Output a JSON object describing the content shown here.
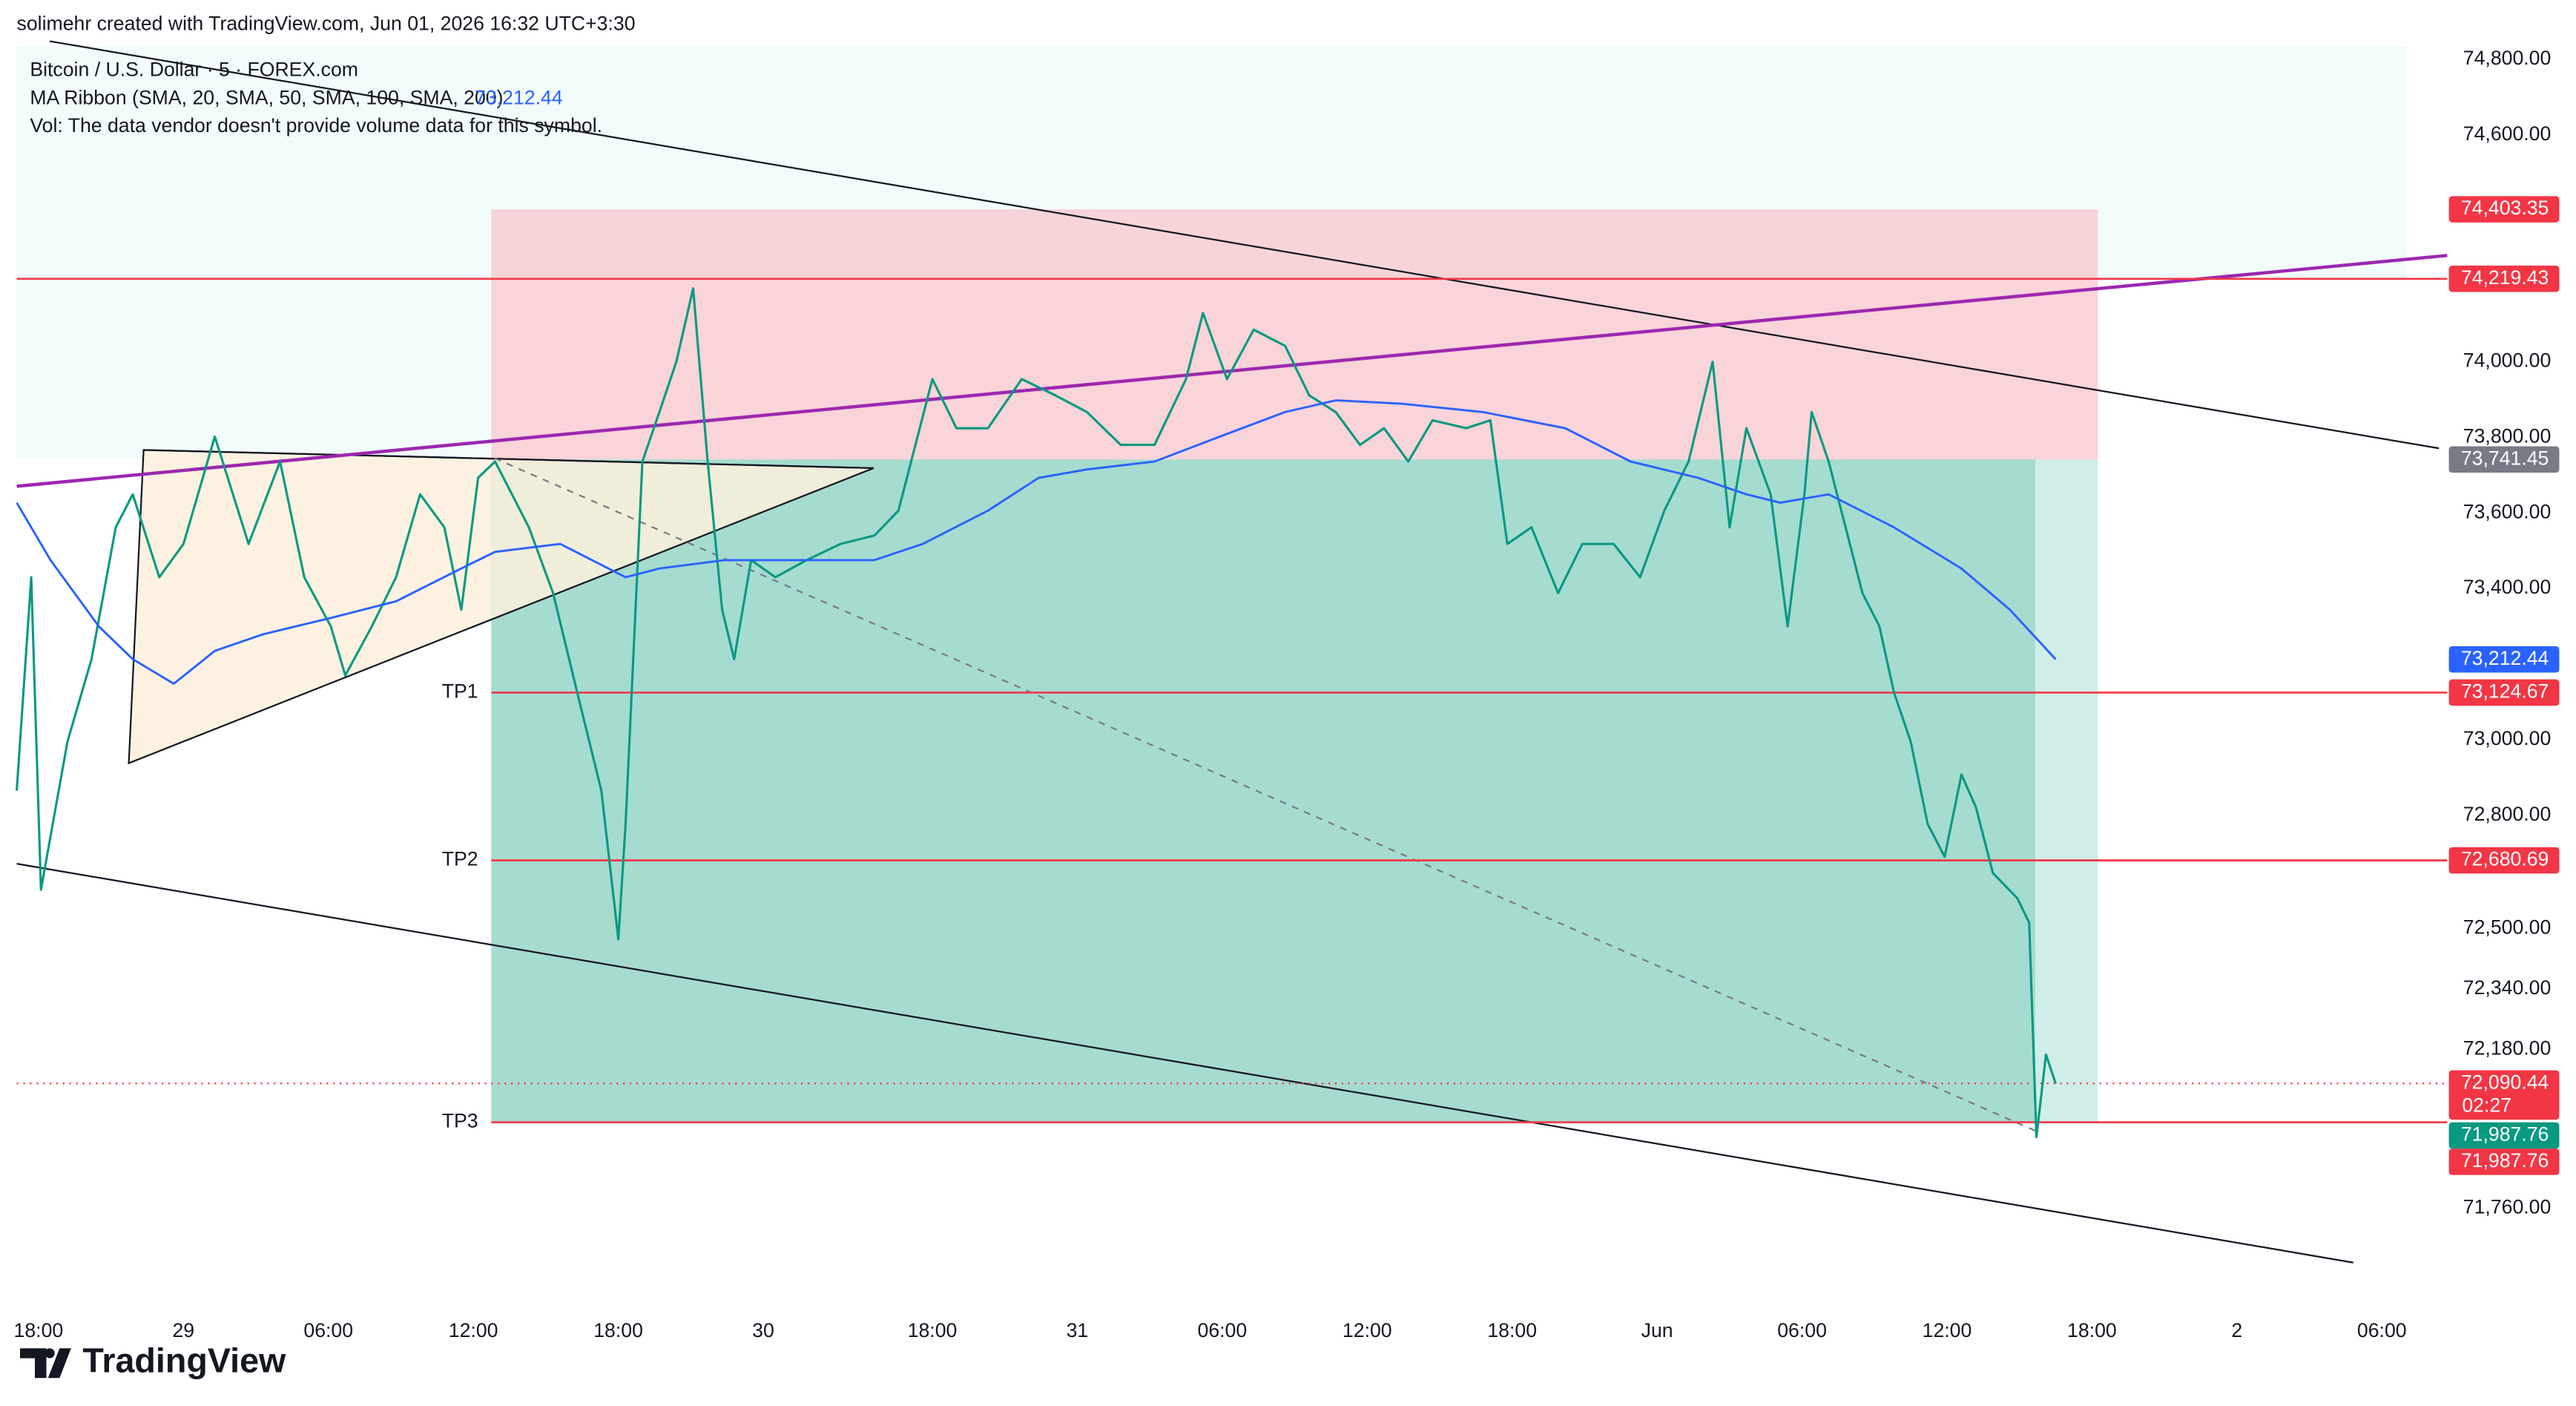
{
  "header": "solimehr created with TradingView.com, Jun 01, 2026 16:32 UTC+3:30",
  "brand": "TradingView",
  "chart_data": {
    "type": "line",
    "title": "Bitcoin / U.S. Dollar · 5 · FOREX.com",
    "volume_message": "Vol: The data vendor doesn't provide volume data for this symbol.",
    "indicator": {
      "name": "MA Ribbon (SMA, 20, SMA, 50, SMA, 100, SMA, 200)",
      "value": 73212.44,
      "value_label": "73,212.44",
      "color": "#2962ff"
    },
    "xlim": [
      -0.9,
      98
    ],
    "xticks": [
      {
        "value": 0,
        "label": "18:00"
      },
      {
        "value": 6,
        "label": "29"
      },
      {
        "value": 12,
        "label": "06:00"
      },
      {
        "value": 18,
        "label": "12:00"
      },
      {
        "value": 24,
        "label": "18:00"
      },
      {
        "value": 30,
        "label": "30"
      },
      {
        "value": 37,
        "label": "18:00"
      },
      {
        "value": 43,
        "label": "31"
      },
      {
        "value": 49,
        "label": "06:00"
      },
      {
        "value": 55,
        "label": "12:00"
      },
      {
        "value": 61,
        "label": "18:00"
      },
      {
        "value": 67,
        "label": "Jun"
      },
      {
        "value": 73,
        "label": "06:00"
      },
      {
        "value": 79,
        "label": "12:00"
      },
      {
        "value": 85,
        "label": "18:00"
      },
      {
        "value": 91,
        "label": "2"
      },
      {
        "value": 97,
        "label": "06:00"
      }
    ],
    "ylim": [
      71490,
      74835
    ],
    "yticks": [
      {
        "value": 74800,
        "label": "74,800.00"
      },
      {
        "value": 74600,
        "label": "74,600.00"
      },
      {
        "value": 74000,
        "label": "74,000.00"
      },
      {
        "value": 73800,
        "label": "73,800.00"
      },
      {
        "value": 73600,
        "label": "73,600.00"
      },
      {
        "value": 73400,
        "label": "73,400.00"
      },
      {
        "value": 73000,
        "label": "73,000.00"
      },
      {
        "value": 72800,
        "label": "72,800.00"
      },
      {
        "value": 72500,
        "label": "72,500.00"
      },
      {
        "value": 72340,
        "label": "72,340.00"
      },
      {
        "value": 72180,
        "label": "72,180.00"
      },
      {
        "value": 71760,
        "label": "71,760.00"
      }
    ],
    "series": [
      {
        "color": "#089981",
        "x": [
          -0.9,
          -0.3,
          0.1,
          1.2,
          2.2,
          3.2,
          3.9,
          5.0,
          6.0,
          7.3,
          8.7,
          10.0,
          11.0,
          12.1,
          12.7,
          13.8,
          14.8,
          15.8,
          16.8,
          17.5,
          18.2,
          18.9,
          20.3,
          21.3,
          22.3,
          23.3,
          24.0,
          24.3,
          25.0,
          25.7,
          26.4,
          27.1,
          27.7,
          28.3,
          28.8,
          29.5,
          30.5,
          31.8,
          33.2,
          34.6,
          35.6,
          36.3,
          37.0,
          38.0,
          39.3,
          40.7,
          42.1,
          43.4,
          44.8,
          46.2,
          47.5,
          48.2,
          49.2,
          50.3,
          51.6,
          52.6,
          53.7,
          54.7,
          55.7,
          56.7,
          57.7,
          59.1,
          60.1,
          60.8,
          61.8,
          62.9,
          63.9,
          65.2,
          66.3,
          67.3,
          68.3,
          69.3,
          70.0,
          70.7,
          71.7,
          72.4,
          73.1,
          73.4,
          74.1,
          74.8,
          75.5,
          76.2,
          76.8,
          77.5,
          78.2,
          78.9,
          79.6,
          80.2,
          80.9,
          81.9,
          82.4,
          82.7,
          83.1,
          83.5
        ],
        "values": [
          72865,
          73430,
          72603,
          72995,
          73213,
          73562,
          73649,
          73430,
          73518,
          73802,
          73518,
          73736,
          73430,
          73300,
          73170,
          73300,
          73430,
          73649,
          73562,
          73344,
          73693,
          73736,
          73562,
          73388,
          73126,
          72865,
          72472,
          72777,
          73736,
          73867,
          74000,
          74194,
          73736,
          73344,
          73213,
          73475,
          73430,
          73475,
          73518,
          73540,
          73606,
          73780,
          73954,
          73824,
          73824,
          73954,
          73911,
          73867,
          73780,
          73780,
          73954,
          74129,
          73954,
          74085,
          74042,
          73911,
          73867,
          73780,
          73824,
          73736,
          73845,
          73824,
          73845,
          73518,
          73562,
          73388,
          73518,
          73518,
          73430,
          73606,
          73736,
          74000,
          73562,
          73824,
          73649,
          73300,
          73649,
          73867,
          73736,
          73562,
          73388,
          73300,
          73126,
          72995,
          72777,
          72690,
          72908,
          72821,
          72647,
          72581,
          72516,
          71949,
          72167,
          72090
        ]
      },
      {
        "name": "MA Ribbon (SMA, 20, SMA, 50, SMA, 100, SMA, 200)",
        "color": "#2962ff",
        "x": [
          -0.9,
          0.5,
          2.5,
          3.9,
          5.6,
          7.3,
          9.3,
          12.1,
          14.8,
          17.5,
          18.9,
          21.6,
          24.3,
          25.7,
          28.4,
          31.1,
          34.6,
          36.6,
          39.3,
          41.4,
          43.4,
          46.2,
          48.9,
          51.6,
          53.7,
          56.4,
          59.8,
          63.2,
          65.9,
          68.7,
          70.7,
          72.1,
          74.1,
          76.8,
          79.6,
          81.6,
          83.5
        ],
        "values": [
          73627,
          73475,
          73300,
          73213,
          73148,
          73235,
          73279,
          73322,
          73366,
          73453,
          73497,
          73518,
          73430,
          73453,
          73475,
          73475,
          73475,
          73518,
          73606,
          73693,
          73715,
          73736,
          73802,
          73867,
          73898,
          73889,
          73867,
          73824,
          73736,
          73693,
          73649,
          73627,
          73649,
          73562,
          73453,
          73344,
          73212.44
        ]
      }
    ],
    "price_levels": [
      {
        "value": 74403.35,
        "label": "74,403.35",
        "color": "#f23645"
      },
      {
        "value": 74219.43,
        "label": "74,219.43",
        "color": "#f23645",
        "line": true
      },
      {
        "value": 73741.45,
        "label": "73,741.45",
        "color": "#787b86"
      },
      {
        "value": 73212.44,
        "label": "73,212.44",
        "color": "#2962ff"
      },
      {
        "value": 73124.67,
        "label": "73,124.67",
        "color": "#f23645",
        "line": true,
        "tag": "TP1"
      },
      {
        "value": 72680.69,
        "label": "72,680.69",
        "color": "#f23645",
        "line": true,
        "tag": "TP2"
      },
      {
        "value": 72090.44,
        "label": "72,090.44",
        "color": "#f23645",
        "countdown": "02:27",
        "dotted": true
      },
      {
        "value": 71987.76,
        "label": "71,987.76",
        "color": "#089981"
      },
      {
        "value": 71987.76,
        "label": "71,987.76",
        "color": "#f23645",
        "line": true,
        "tag": "TP3"
      }
    ]
  }
}
